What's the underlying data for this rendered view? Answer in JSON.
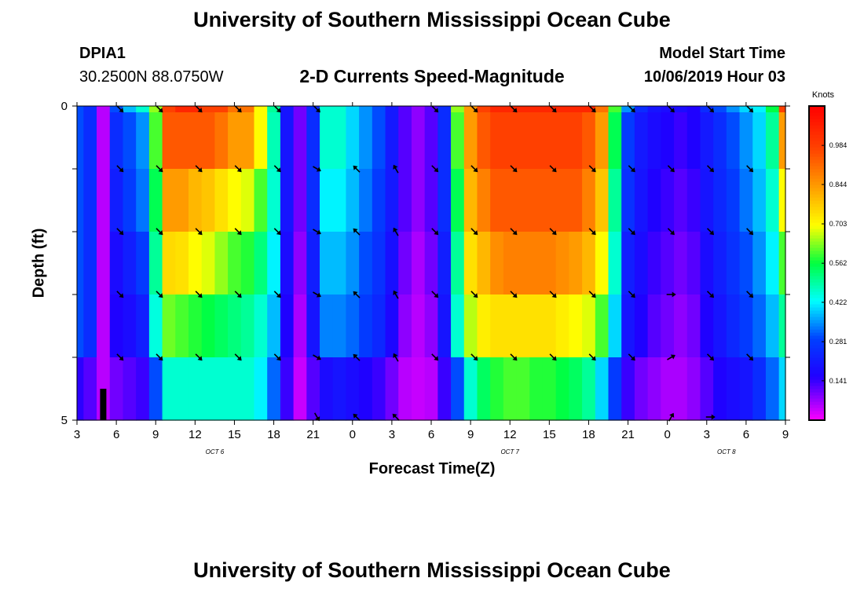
{
  "header": {
    "title": "University of Southern Mississippi Ocean Cube",
    "station_id": "DPIA1",
    "coordinates": "30.2500N 88.0750W",
    "subtitle": "2-D Currents Speed-Magnitude",
    "model_start_label": "Model Start Time",
    "model_start_value": "10/06/2019 Hour 03"
  },
  "footer": {
    "title": "University of Southern Mississippi Ocean Cube"
  },
  "chart_data": {
    "type": "heatmap",
    "title": "2-D Currents Speed-Magnitude",
    "xlabel": "Forecast Time(Z)",
    "ylabel": "Depth (ft)",
    "x_tick_labels": [
      "3",
      "6",
      "9",
      "12",
      "15",
      "18",
      "21",
      "0",
      "3",
      "6",
      "9",
      "12",
      "15",
      "18",
      "21",
      "0",
      "3",
      "6",
      "9"
    ],
    "date_labels": [
      {
        "text": "OCT 6",
        "tick_index": 3.5
      },
      {
        "text": "OCT 7",
        "tick_index": 11
      },
      {
        "text": "OCT 8",
        "tick_index": 16.5
      }
    ],
    "y_range": [
      0,
      5
    ],
    "y_tick_labels": [
      "0",
      "5"
    ],
    "colorbar": {
      "title": "Knots",
      "min": 0,
      "max": 1.125,
      "tick_values": [
        0.141,
        0.281,
        0.422,
        0.562,
        0.703,
        0.844,
        0.984
      ],
      "tick_labels": [
        "0.141",
        "0.281",
        "0.422",
        "0.562",
        "0.703",
        "0.844",
        "0.984"
      ]
    },
    "time_hours": [
      3,
      4,
      5,
      6,
      7,
      8,
      9,
      10,
      11,
      12,
      13,
      14,
      15,
      16,
      17,
      18,
      19,
      20,
      21,
      22,
      23,
      24,
      25,
      26,
      27,
      28,
      29,
      30,
      31,
      32,
      33,
      34,
      35,
      36,
      37,
      38,
      39,
      40,
      41,
      42,
      43,
      44,
      45,
      46,
      47,
      48,
      49,
      50,
      51,
      52,
      53,
      54,
      55,
      56,
      57
    ],
    "depth_levels_ft": [
      0,
      0.5,
      1.5,
      2.5,
      3.5,
      4.5
    ],
    "speed_knots": [
      [
        0.3,
        0.25,
        0.05,
        0.3,
        0.38,
        0.46,
        0.64,
        0.98,
        1.04,
        1.04,
        0.98,
        0.98,
        0.9,
        0.9,
        0.7,
        0.5,
        0.2,
        0.1,
        0.25,
        0.46,
        0.46,
        0.4,
        0.35,
        0.3,
        0.21,
        0.12,
        0.08,
        0.12,
        0.25,
        0.64,
        0.84,
        0.98,
        1.04,
        1.04,
        1.04,
        1.04,
        1.04,
        1.04,
        1.04,
        1.04,
        0.9,
        0.6,
        0.35,
        0.25,
        0.2,
        0.18,
        0.18,
        0.16,
        0.25,
        0.3,
        0.35,
        0.4,
        0.42,
        0.56,
        0.98
      ],
      [
        0.3,
        0.25,
        0.05,
        0.25,
        0.3,
        0.35,
        0.6,
        0.94,
        0.94,
        0.94,
        0.94,
        0.9,
        0.84,
        0.84,
        0.7,
        0.48,
        0.2,
        0.1,
        0.25,
        0.46,
        0.46,
        0.4,
        0.35,
        0.3,
        0.21,
        0.12,
        0.08,
        0.12,
        0.25,
        0.6,
        0.84,
        0.94,
        0.98,
        0.98,
        0.98,
        0.98,
        0.98,
        0.98,
        0.98,
        0.94,
        0.84,
        0.55,
        0.28,
        0.21,
        0.18,
        0.16,
        0.14,
        0.16,
        0.21,
        0.25,
        0.3,
        0.35,
        0.4,
        0.5,
        0.84
      ],
      [
        0.3,
        0.25,
        0.05,
        0.22,
        0.28,
        0.33,
        0.55,
        0.84,
        0.84,
        0.8,
        0.78,
        0.74,
        0.7,
        0.68,
        0.6,
        0.46,
        0.2,
        0.1,
        0.25,
        0.42,
        0.42,
        0.38,
        0.33,
        0.28,
        0.21,
        0.12,
        0.08,
        0.12,
        0.25,
        0.55,
        0.8,
        0.88,
        0.94,
        0.94,
        0.94,
        0.94,
        0.94,
        0.94,
        0.94,
        0.88,
        0.78,
        0.5,
        0.26,
        0.2,
        0.16,
        0.14,
        0.12,
        0.14,
        0.2,
        0.24,
        0.28,
        0.33,
        0.38,
        0.46,
        0.7
      ],
      [
        0.3,
        0.25,
        0.05,
        0.18,
        0.22,
        0.28,
        0.5,
        0.75,
        0.74,
        0.7,
        0.68,
        0.64,
        0.6,
        0.58,
        0.52,
        0.42,
        0.18,
        0.08,
        0.22,
        0.38,
        0.38,
        0.35,
        0.3,
        0.26,
        0.19,
        0.1,
        0.06,
        0.1,
        0.22,
        0.5,
        0.74,
        0.8,
        0.86,
        0.88,
        0.88,
        0.88,
        0.88,
        0.86,
        0.84,
        0.8,
        0.7,
        0.46,
        0.22,
        0.18,
        0.14,
        0.12,
        0.1,
        0.12,
        0.18,
        0.22,
        0.26,
        0.3,
        0.35,
        0.42,
        0.6
      ],
      [
        0.3,
        0.25,
        0.05,
        0.16,
        0.18,
        0.22,
        0.45,
        0.62,
        0.6,
        0.58,
        0.56,
        0.54,
        0.52,
        0.5,
        0.46,
        0.38,
        0.16,
        0.06,
        0.2,
        0.34,
        0.34,
        0.32,
        0.28,
        0.24,
        0.17,
        0.08,
        0.05,
        0.08,
        0.2,
        0.46,
        0.66,
        0.72,
        0.74,
        0.74,
        0.74,
        0.74,
        0.74,
        0.72,
        0.7,
        0.68,
        0.6,
        0.4,
        0.2,
        0.16,
        0.12,
        0.1,
        0.08,
        0.1,
        0.16,
        0.2,
        0.24,
        0.28,
        0.32,
        0.38,
        0.5
      ],
      [
        0.15,
        0.12,
        0.05,
        0.1,
        0.12,
        0.14,
        0.3,
        0.46,
        0.46,
        0.46,
        0.46,
        0.46,
        0.46,
        0.46,
        0.42,
        0.32,
        0.14,
        0.04,
        0.12,
        0.18,
        0.2,
        0.18,
        0.16,
        0.14,
        0.1,
        0.05,
        0.04,
        0.05,
        0.14,
        0.3,
        0.46,
        0.54,
        0.58,
        0.6,
        0.6,
        0.58,
        0.58,
        0.56,
        0.54,
        0.5,
        0.4,
        0.28,
        0.14,
        0.1,
        0.08,
        0.06,
        0.06,
        0.08,
        0.12,
        0.16,
        0.18,
        0.2,
        0.25,
        0.32,
        0.4
      ]
    ],
    "arrow_times_hours": [
      6,
      9,
      12,
      15,
      18,
      21,
      24,
      27,
      30,
      33,
      36,
      39,
      42,
      45,
      48,
      51,
      54
    ],
    "arrow_depths_ft": [
      0,
      1,
      2,
      3,
      4,
      5
    ],
    "arrow_directions_deg": [
      [
        135,
        135,
        135,
        135,
        135,
        135,
        null,
        null,
        135,
        135,
        135,
        135,
        135,
        135,
        135,
        135,
        135
      ],
      [
        135,
        135,
        135,
        135,
        135,
        120,
        315,
        330,
        135,
        135,
        135,
        135,
        135,
        135,
        135,
        135,
        135
      ],
      [
        135,
        135,
        135,
        135,
        135,
        120,
        315,
        330,
        135,
        135,
        135,
        135,
        135,
        135,
        135,
        135,
        135
      ],
      [
        135,
        135,
        135,
        135,
        135,
        120,
        315,
        330,
        135,
        135,
        135,
        135,
        135,
        135,
        90,
        135,
        135
      ],
      [
        135,
        135,
        135,
        135,
        135,
        120,
        315,
        330,
        135,
        135,
        135,
        135,
        135,
        135,
        60,
        135,
        135
      ],
      [
        null,
        null,
        null,
        null,
        null,
        150,
        315,
        315,
        null,
        null,
        null,
        null,
        null,
        null,
        30,
        90,
        null
      ]
    ],
    "bottom_marker": {
      "time_hours": 5,
      "depth_from_ft": 4.5,
      "depth_to_ft": 5
    }
  }
}
